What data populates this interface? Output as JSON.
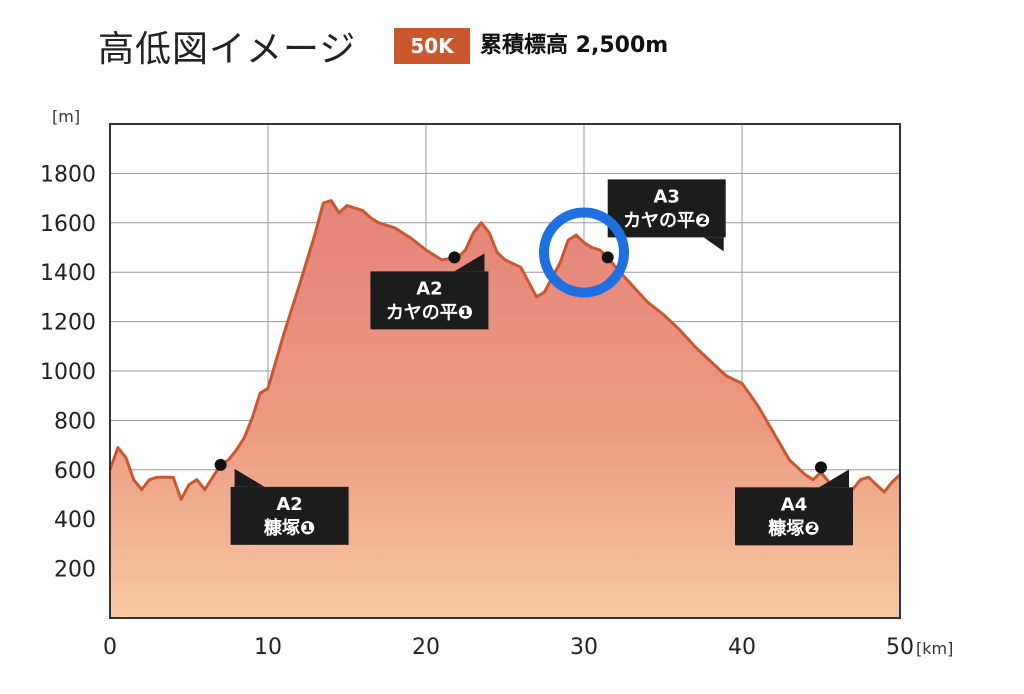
{
  "header": {
    "title": "高低図イメージ",
    "badge": "50K",
    "elevation_text": "累積標高 2,500m",
    "badge_color": "#c9582f"
  },
  "chart_data": {
    "type": "area",
    "xlabel": "[km]",
    "ylabel": "[m]",
    "xlim": [
      0,
      50
    ],
    "ylim": [
      0,
      2000
    ],
    "xticks": [
      0,
      10,
      20,
      30,
      40,
      50
    ],
    "yticks": [
      200,
      400,
      600,
      800,
      1000,
      1200,
      1400,
      1600,
      1800
    ],
    "grid": true,
    "x": [
      0,
      0.5,
      1,
      1.5,
      2,
      2.5,
      3,
      3.5,
      4,
      4.5,
      5,
      5.5,
      6,
      6.5,
      7,
      7.5,
      8,
      8.5,
      9,
      9.5,
      10,
      11,
      12,
      13,
      13.5,
      14,
      14.5,
      15,
      15.5,
      16,
      16.5,
      17,
      18,
      19,
      20,
      21,
      22,
      22.5,
      23,
      23.5,
      24,
      24.5,
      25,
      26,
      27,
      27.5,
      28,
      28.5,
      29,
      29.5,
      30,
      30.5,
      31,
      31.5,
      32,
      33,
      34,
      35,
      36,
      37,
      38,
      39,
      40,
      41,
      42,
      43,
      44,
      44.5,
      45,
      45.5,
      46,
      46.5,
      47,
      47.5,
      48,
      48.5,
      49,
      49.5,
      50
    ],
    "y": [
      600,
      690,
      650,
      560,
      520,
      560,
      570,
      570,
      570,
      480,
      540,
      560,
      520,
      570,
      620,
      640,
      680,
      730,
      810,
      910,
      930,
      1150,
      1350,
      1560,
      1680,
      1690,
      1640,
      1670,
      1660,
      1650,
      1620,
      1600,
      1580,
      1540,
      1490,
      1450,
      1460,
      1490,
      1560,
      1600,
      1560,
      1480,
      1450,
      1420,
      1300,
      1320,
      1380,
      1440,
      1530,
      1550,
      1520,
      1500,
      1490,
      1460,
      1420,
      1350,
      1280,
      1230,
      1170,
      1100,
      1040,
      980,
      950,
      860,
      750,
      640,
      580,
      560,
      590,
      550,
      510,
      500,
      520,
      560,
      570,
      540,
      510,
      550,
      580
    ],
    "series_color": "#c9582f",
    "annotations": [
      {
        "x": 7,
        "y": 620,
        "line1": "A2",
        "line2": "糠塚❶"
      },
      {
        "x": 21.8,
        "y": 1460,
        "line1": "A2",
        "line2": "カヤの平❶"
      },
      {
        "x": 31.5,
        "y": 1460,
        "line1": "A3",
        "line2": "カヤの平❷"
      },
      {
        "x": 45,
        "y": 610,
        "line1": "A4",
        "line2": "糠塚❷"
      }
    ],
    "highlight": {
      "x": 30,
      "y": 1480,
      "color": "#1e6fe0"
    }
  }
}
